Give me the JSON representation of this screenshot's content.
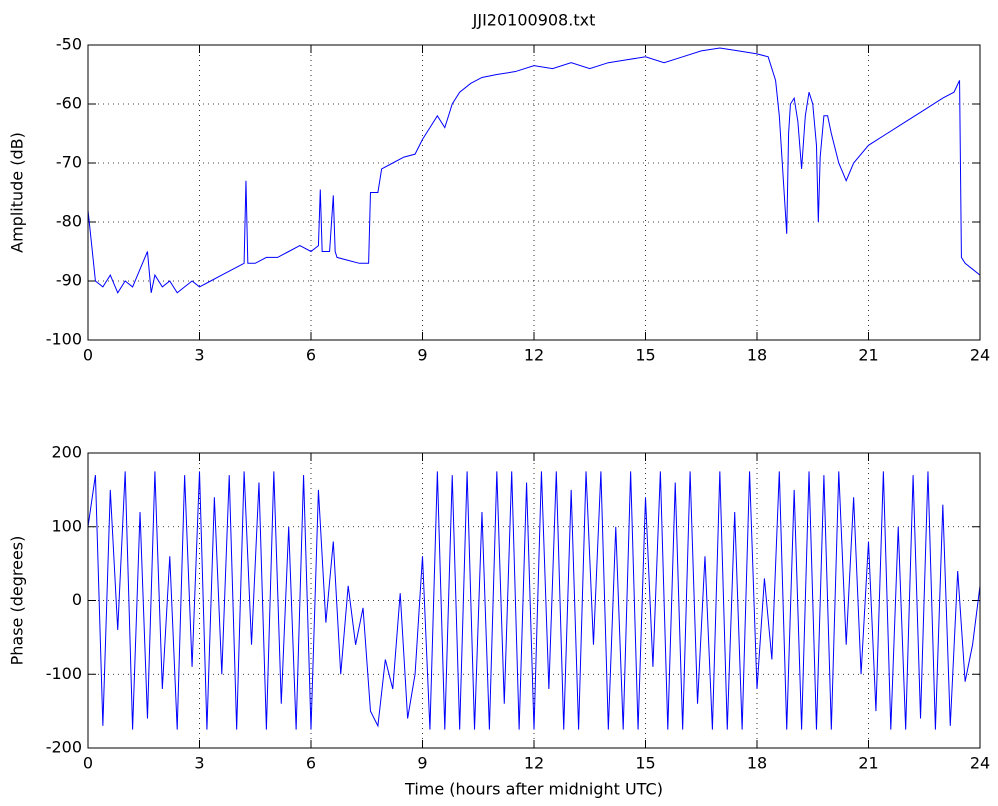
{
  "chart_data": [
    {
      "type": "line",
      "title": "JJI20100908.txt",
      "ylabel": "Amplitude (dB)",
      "x": [
        0,
        0.1,
        0.2,
        0.4,
        0.6,
        0.8,
        1.0,
        1.2,
        1.4,
        1.6,
        1.7,
        1.8,
        2.0,
        2.2,
        2.4,
        2.6,
        2.8,
        3.0,
        3.3,
        3.6,
        3.9,
        4.2,
        4.25,
        4.3,
        4.5,
        4.8,
        5.1,
        5.4,
        5.7,
        6.0,
        6.2,
        6.25,
        6.3,
        6.5,
        6.6,
        6.65,
        6.7,
        7.0,
        7.3,
        7.55,
        7.6,
        7.8,
        7.9,
        8.2,
        8.5,
        8.8,
        9.0,
        9.2,
        9.4,
        9.6,
        9.8,
        10.0,
        10.3,
        10.6,
        11.0,
        11.5,
        12.0,
        12.5,
        13.0,
        13.5,
        14.0,
        14.5,
        15.0,
        15.5,
        16.0,
        16.5,
        17.0,
        17.5,
        18.0,
        18.3,
        18.5,
        18.6,
        18.7,
        18.8,
        18.85,
        18.9,
        19.0,
        19.1,
        19.2,
        19.3,
        19.4,
        19.5,
        19.6,
        19.65,
        19.7,
        19.8,
        19.9,
        20.0,
        20.2,
        20.4,
        20.6,
        21.0,
        21.5,
        22.0,
        22.5,
        23.0,
        23.3,
        23.45,
        23.5,
        23.6,
        23.8,
        24.0
      ],
      "series": [
        {
          "color": "#0000ff",
          "values": [
            -78,
            -84,
            -90,
            -91,
            -89,
            -92,
            -90,
            -91,
            -88,
            -85,
            -92,
            -89,
            -91,
            -90,
            -92,
            -91,
            -90,
            -91,
            -90,
            -89,
            -88,
            -87,
            -73,
            -87,
            -87,
            -86,
            -86,
            -85,
            -84,
            -85,
            -84,
            -74.5,
            -85,
            -85,
            -75.5,
            -85,
            -86,
            -86.5,
            -87,
            -87,
            -75,
            -75,
            -71,
            -70,
            -69,
            -68.5,
            -66,
            -64,
            -62,
            -64,
            -60,
            -58,
            -56.5,
            -55.5,
            -55,
            -54.5,
            -53.5,
            -54,
            -53,
            -54,
            -53,
            -52.5,
            -52,
            -53,
            -52,
            -51,
            -50.5,
            -51,
            -51.5,
            -52,
            -56,
            -62,
            -72,
            -82,
            -65,
            -60,
            -59,
            -63,
            -71,
            -62,
            -58,
            -60,
            -67,
            -80,
            -69,
            -62,
            -62,
            -65,
            -70,
            -73,
            -70,
            -67,
            -65,
            -63,
            -61,
            -59,
            -58,
            -56,
            -86,
            -87,
            -88,
            -89
          ]
        }
      ],
      "xlim": [
        0,
        24
      ],
      "xticks": [
        0,
        3,
        6,
        9,
        12,
        15,
        18,
        21,
        24
      ],
      "ylim": [
        -100,
        -50
      ],
      "yticks": [
        -100,
        -90,
        -80,
        -70,
        -60,
        -50
      ],
      "grid": true
    },
    {
      "type": "line",
      "ylabel": "Phase (degrees)",
      "xlabel": "Time (hours after midnight UTC)",
      "x": [
        0,
        0.2,
        0.4,
        0.6,
        0.8,
        1,
        1.2,
        1.4,
        1.6,
        1.8,
        2,
        2.2,
        2.4,
        2.6,
        2.8,
        3,
        3.2,
        3.4,
        3.6,
        3.8,
        4,
        4.2,
        4.4,
        4.6,
        4.8,
        5,
        5.2,
        5.4,
        5.6,
        5.8,
        6,
        6.2,
        6.4,
        6.6,
        6.8,
        7,
        7.2,
        7.4,
        7.6,
        7.8,
        8,
        8.2,
        8.4,
        8.6,
        8.8,
        9,
        9.2,
        9.4,
        9.6,
        9.8,
        10,
        10.2,
        10.4,
        10.6,
        10.8,
        11,
        11.2,
        11.4,
        11.6,
        11.8,
        12,
        12.2,
        12.4,
        12.6,
        12.8,
        13,
        13.2,
        13.4,
        13.6,
        13.8,
        14,
        14.2,
        14.4,
        14.6,
        14.8,
        15,
        15.2,
        15.4,
        15.6,
        15.8,
        16,
        16.2,
        16.4,
        16.6,
        16.8,
        17,
        17.2,
        17.4,
        17.6,
        17.8,
        18,
        18.2,
        18.4,
        18.6,
        18.8,
        19,
        19.2,
        19.4,
        19.6,
        19.8,
        20,
        20.2,
        20.4,
        20.6,
        20.8,
        21,
        21.2,
        21.4,
        21.6,
        21.8,
        22,
        22.2,
        22.4,
        22.6,
        22.8,
        23,
        23.2,
        23.4,
        23.6,
        23.8,
        24
      ],
      "series": [
        {
          "color": "#0000ff",
          "values": [
            100,
            170,
            -170,
            150,
            -40,
            175,
            -175,
            120,
            -160,
            175,
            -120,
            60,
            -175,
            170,
            -90,
            175,
            -175,
            140,
            -100,
            170,
            -175,
            175,
            -60,
            160,
            -175,
            175,
            -140,
            100,
            -175,
            170,
            -175,
            150,
            -30,
            80,
            -100,
            20,
            -60,
            -10,
            -150,
            -170,
            -80,
            -120,
            10,
            -160,
            -100,
            60,
            -175,
            175,
            -175,
            170,
            -175,
            175,
            -175,
            120,
            -175,
            175,
            -140,
            175,
            -175,
            160,
            -175,
            175,
            -120,
            175,
            -175,
            150,
            -175,
            175,
            -60,
            175,
            -175,
            100,
            -175,
            175,
            -175,
            140,
            -90,
            175,
            -175,
            160,
            -175,
            175,
            -140,
            60,
            -175,
            175,
            -175,
            120,
            -175,
            175,
            -120,
            30,
            -80,
            175,
            -175,
            150,
            -175,
            175,
            -175,
            170,
            -175,
            175,
            -60,
            140,
            -100,
            80,
            -150,
            175,
            -175,
            100,
            -175,
            170,
            -160,
            175,
            -175,
            130,
            -170,
            40,
            -110,
            -60,
            20
          ]
        }
      ],
      "xlim": [
        0,
        24
      ],
      "xticks": [
        0,
        3,
        6,
        9,
        12,
        15,
        18,
        21,
        24
      ],
      "ylim": [
        -200,
        200
      ],
      "yticks": [
        -200,
        -100,
        0,
        100,
        200
      ],
      "grid": true
    }
  ]
}
